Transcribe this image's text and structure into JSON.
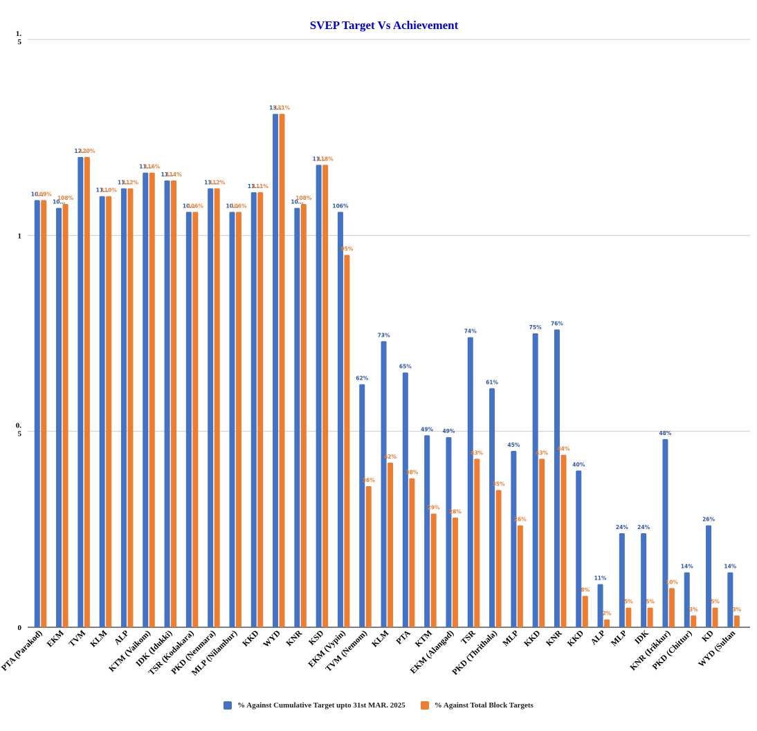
{
  "chart_data": {
    "type": "bar",
    "title": "SVEP Target Vs Achievement",
    "title_color": "#0000cc",
    "ylim": [
      0,
      1.5
    ],
    "yticks": [
      {
        "value": 0,
        "label": "0"
      },
      {
        "value": 0.5,
        "label": "0.5"
      },
      {
        "value": 1,
        "label": "1"
      },
      {
        "value": 1.5,
        "label": "1.5"
      }
    ],
    "grid": true,
    "legend_position": "bottom",
    "categories": [
      "PTA (Parakod)",
      "EKM",
      "TVM",
      "KLM",
      "ALP",
      "KTM (Vaikom)",
      "IDK (Idukki)",
      "TSR (Kodakara)",
      "PKD (Nenmara)",
      "MLP (Nilambur)",
      "KKD",
      "WYD",
      "KNR",
      "KSD",
      "EKM (Vypin)",
      "TVM (Nemom)",
      "KLM",
      "PTA",
      "KTM",
      "EKM (Alangad)",
      "TSR",
      "PKD (Thrithala)",
      "MLP",
      "KKD",
      "KNR",
      "KKD",
      "ALP",
      "MLP",
      "IDK",
      "KNR (Irikkur)",
      "PKD (Chittur)",
      "KD",
      "WYD (Sultan"
    ],
    "series": [
      {
        "name": "% Against Cumulative Target upto  31st MAR. 2025",
        "color": "#4472c4",
        "label_color": "#2f55a4",
        "values": [
          1.09,
          1.07,
          1.2,
          1.1,
          1.12,
          1.16,
          1.14,
          1.06,
          1.12,
          1.06,
          1.11,
          1.31,
          1.07,
          1.18,
          1.06,
          0.62,
          0.73,
          0.65,
          0.49,
          0.485,
          0.74,
          0.61,
          0.45,
          0.75,
          0.76,
          0.4,
          0.11,
          0.24,
          0.24,
          0.48,
          0.14,
          0.26,
          0.14
        ],
        "labels": [
          "10…",
          "10…",
          "12…",
          "11…",
          "11…",
          "11…",
          "11…",
          "10…",
          "11…",
          "10…",
          "11…",
          "13…",
          "10…",
          "11…",
          "106%",
          "62%",
          "73%",
          "65%",
          "49%",
          "49%",
          "74%",
          "61%",
          "45%",
          "75%",
          "76%",
          "40%",
          "11%",
          "24%",
          "24%",
          "48%",
          "14%",
          "26%",
          "14%"
        ]
      },
      {
        "name": "% Against Total Block Targets",
        "color": "#ed7d31",
        "label_color": "#ed7d31",
        "values": [
          1.09,
          1.08,
          1.2,
          1.1,
          1.12,
          1.16,
          1.14,
          1.06,
          1.12,
          1.06,
          1.11,
          1.31,
          1.08,
          1.18,
          0.95,
          0.36,
          0.42,
          0.38,
          0.29,
          0.28,
          0.43,
          0.35,
          0.26,
          0.43,
          0.44,
          0.08,
          0.02,
          0.05,
          0.05,
          0.1,
          0.03,
          0.05,
          0.03
        ],
        "labels": [
          "109%",
          "108%",
          "120%",
          "110%",
          "112%",
          "116%",
          "114%",
          "106%",
          "112%",
          "106%",
          "111%",
          "131%",
          "108%",
          "118%",
          "95%",
          "36%",
          "42%",
          "38%",
          "29%",
          "28%",
          "43%",
          "35%",
          "26%",
          "43%",
          "44%",
          "8%",
          "2%",
          "5%",
          "5%",
          "10%",
          "3%",
          "5%",
          "3%"
        ]
      }
    ]
  }
}
